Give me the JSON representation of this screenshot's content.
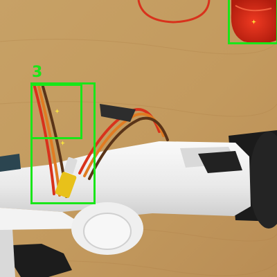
{
  "image": {
    "description_type": "photo",
    "colors": {
      "table": "#c59d62",
      "arm": "#eeeeee",
      "wire_red": "#d8321c",
      "wire_orange": "#e07b22",
      "wire_brown": "#5a3418",
      "motor_black": "#1b1b1b",
      "box_outline": "#19e619",
      "center_dot": "#ffeb3b"
    }
  },
  "annotations": {
    "label": "3",
    "box_count": 3,
    "boxes": [
      {
        "name": "wire-box-outer"
      },
      {
        "name": "wire-box-inner"
      },
      {
        "name": "red-object-box"
      }
    ]
  }
}
